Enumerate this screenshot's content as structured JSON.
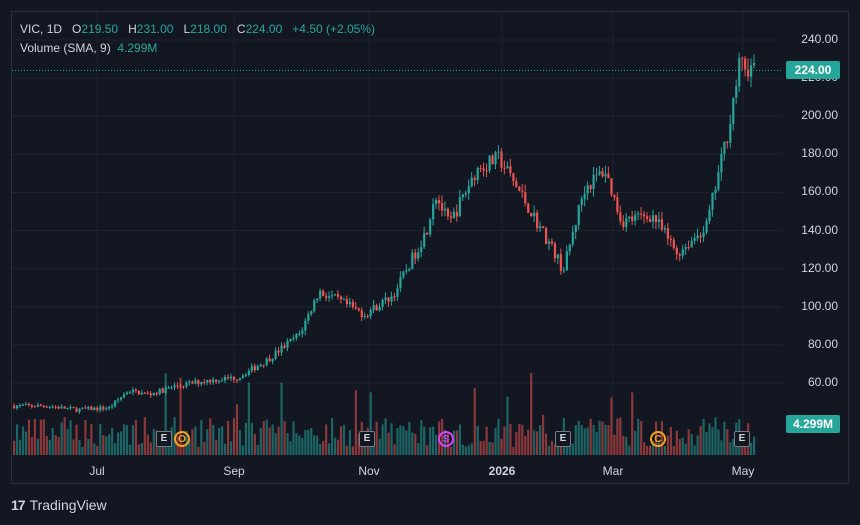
{
  "symbol": "VIC",
  "interval": "1D",
  "ohlc": {
    "o_label": "O",
    "o": "219.50",
    "h_label": "H",
    "h": "231.00",
    "l_label": "L",
    "l": "218.00",
    "c_label": "C",
    "c": "224.00",
    "change": "+4.50 (+2.05%)"
  },
  "volume_indicator": {
    "label": "Volume (SMA, 9)",
    "value": "4.299M"
  },
  "last_price_tag": "224.00",
  "volume_tag": "4.299M",
  "y_axis": [
    "240.00",
    "220.00",
    "200.00",
    "180.00",
    "160.00",
    "140.00",
    "120.00",
    "100.00",
    "80.00",
    "60.00"
  ],
  "x_axis": [
    {
      "label": "Jul",
      "bold": false
    },
    {
      "label": "Sep",
      "bold": false
    },
    {
      "label": "Nov",
      "bold": false
    },
    {
      "label": "2026",
      "bold": true
    },
    {
      "label": "Mar",
      "bold": false
    },
    {
      "label": "May",
      "bold": false
    }
  ],
  "events": [
    {
      "type": "box",
      "text": "E"
    },
    {
      "type": "o",
      "text": "O"
    },
    {
      "type": "box",
      "text": "E"
    },
    {
      "type": "s",
      "text": "S"
    },
    {
      "type": "box",
      "text": "E"
    },
    {
      "type": "c",
      "text": "C"
    },
    {
      "type": "box",
      "text": "E"
    }
  ],
  "brand": "TradingView",
  "colors": {
    "up": "#26a69a",
    "down": "#ef5350",
    "background": "#131722",
    "grid": "#1e222d",
    "last_line": "#26a69a"
  },
  "chart_data": {
    "type": "candlestick",
    "title": "",
    "ylim": [
      40,
      245
    ],
    "x_range": [
      "2025-05-16",
      "2026-05-08"
    ],
    "price_series": [
      [
        "2025-05-16",
        48
      ],
      [
        "2025-06-01",
        48
      ],
      [
        "2025-06-15",
        46
      ],
      [
        "2025-07-01",
        47
      ],
      [
        "2025-07-10",
        56
      ],
      [
        "2025-07-20",
        54
      ],
      [
        "2025-08-01",
        58
      ],
      [
        "2025-08-15",
        61
      ],
      [
        "2025-09-01",
        63
      ],
      [
        "2025-09-15",
        72
      ],
      [
        "2025-10-01",
        86
      ],
      [
        "2025-10-10",
        108
      ],
      [
        "2025-10-20",
        103
      ],
      [
        "2025-11-01",
        96
      ],
      [
        "2025-11-15",
        106
      ],
      [
        "2025-12-01",
        140
      ],
      [
        "2025-12-05",
        160
      ],
      [
        "2025-12-12",
        143
      ],
      [
        "2025-12-25",
        172
      ],
      [
        "2026-01-05",
        178
      ],
      [
        "2026-01-15",
        160
      ],
      [
        "2026-02-01",
        128
      ],
      [
        "2026-02-05",
        119
      ],
      [
        "2026-02-15",
        162
      ],
      [
        "2026-02-25",
        172
      ],
      [
        "2026-03-05",
        145
      ],
      [
        "2026-03-20",
        148
      ],
      [
        "2026-04-01",
        128
      ],
      [
        "2026-04-15",
        142
      ],
      [
        "2026-04-25",
        190
      ],
      [
        "2026-05-01",
        227
      ],
      [
        "2026-05-08",
        224
      ]
    ],
    "last_close": 224.0,
    "volume_sma": "4.299M"
  }
}
